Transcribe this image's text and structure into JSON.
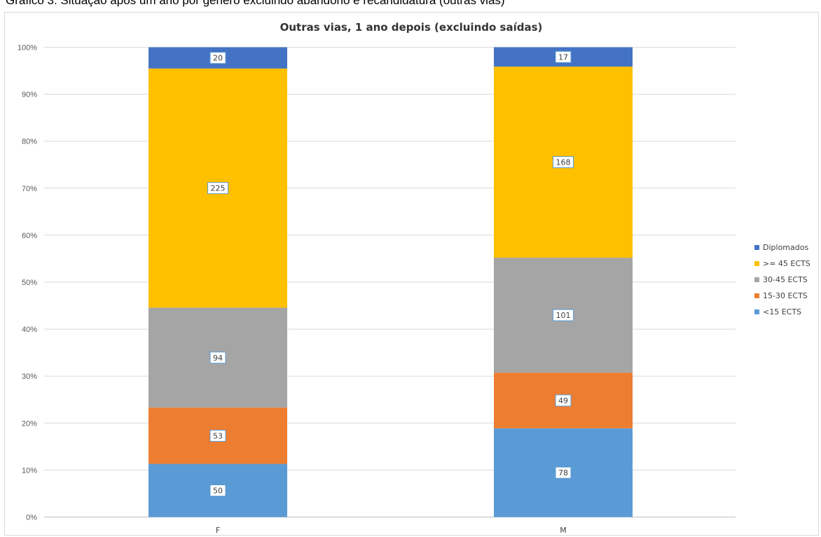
{
  "caption": "Gráfico 3: Situação após um ano por género excluindo abandono e recandidatura (outras vias)",
  "chart_data": {
    "type": "bar",
    "stacked": "percent",
    "title": "Outras vias, 1 ano depois (excluindo saídas)",
    "categories": [
      "F",
      "M"
    ],
    "series": [
      {
        "name": "<15 ECTS",
        "values": [
          50,
          78
        ],
        "color": "#5b9bd5"
      },
      {
        "name": "15-30 ECTS",
        "values": [
          53,
          49
        ],
        "color": "#ed7d31"
      },
      {
        "name": "30-45 ECTS",
        "values": [
          94,
          101
        ],
        "color": "#a5a5a5"
      },
      {
        "name": ">= 45 ECTS",
        "values": [
          225,
          168
        ],
        "color": "#ffc000"
      },
      {
        "name": "Diplomados",
        "values": [
          20,
          17
        ],
        "color": "#4472c4"
      }
    ],
    "y_ticks": [
      "0%",
      "10%",
      "20%",
      "30%",
      "40%",
      "50%",
      "60%",
      "70%",
      "80%",
      "90%",
      "100%"
    ],
    "ylim": [
      0,
      100
    ],
    "grid": true,
    "legend_position": "right",
    "legend_order": [
      "Diplomados",
      ">= 45 ECTS",
      "30-45 ECTS",
      "15-30 ECTS",
      "<15 ECTS"
    ],
    "xlabel": "",
    "ylabel": ""
  }
}
